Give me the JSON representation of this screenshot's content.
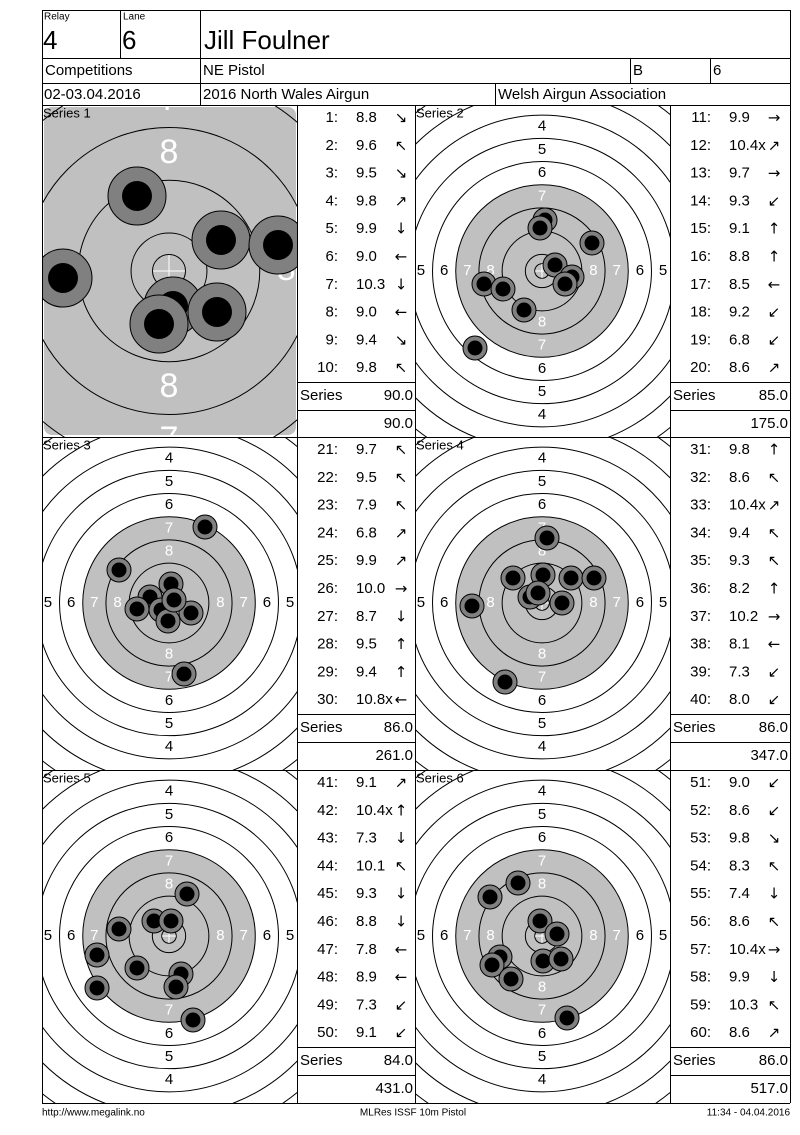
{
  "header": {
    "relay_label": "Relay",
    "relay": "4",
    "lane_label": "Lane",
    "lane": "6",
    "name": "Jill Foulner",
    "competitions_label": "Competitions",
    "discipline": "NE Pistol",
    "class": "B",
    "class_no": "6",
    "date": "02-03.04.2016",
    "event": "2016 North Wales Airgun",
    "organizer": "Welsh Airgun Association"
  },
  "target_rings": [
    "4",
    "5",
    "6",
    "7",
    "8"
  ],
  "series": [
    {
      "title": "Series 1",
      "series_label": "Series",
      "total": "90.0",
      "cumulative": "90.0",
      "shots": [
        {
          "no": "1:",
          "score": "8.8",
          "dir": "↘"
        },
        {
          "no": "2:",
          "score": "9.6",
          "dir": "↖"
        },
        {
          "no": "3:",
          "score": "9.5",
          "dir": "↘"
        },
        {
          "no": "4:",
          "score": "9.8",
          "dir": "↗"
        },
        {
          "no": "5:",
          "score": "9.9",
          "dir": "↓"
        },
        {
          "no": "6:",
          "score": "9.0",
          "dir": "←"
        },
        {
          "no": "7:",
          "score": "10.3",
          "dir": "↓"
        },
        {
          "no": "8:",
          "score": "9.0",
          "dir": "←"
        },
        {
          "no": "9:",
          "score": "9.4",
          "dir": "↘"
        },
        {
          "no": "10:",
          "score": "9.8",
          "dir": "↖"
        }
      ]
    },
    {
      "title": "Series 2",
      "series_label": "Series",
      "total": "85.0",
      "cumulative": "175.0",
      "shots": [
        {
          "no": "11:",
          "score": "9.9",
          "dir": "→"
        },
        {
          "no": "12:",
          "score": "10.4x",
          "dir": "↗"
        },
        {
          "no": "13:",
          "score": "9.7",
          "dir": "→"
        },
        {
          "no": "14:",
          "score": "9.3",
          "dir": "↙"
        },
        {
          "no": "15:",
          "score": "9.1",
          "dir": "↑"
        },
        {
          "no": "16:",
          "score": "8.8",
          "dir": "↑"
        },
        {
          "no": "17:",
          "score": "8.5",
          "dir": "←"
        },
        {
          "no": "18:",
          "score": "9.2",
          "dir": "↙"
        },
        {
          "no": "19:",
          "score": "6.8",
          "dir": "↙"
        },
        {
          "no": "20:",
          "score": "8.6",
          "dir": "↗"
        }
      ]
    },
    {
      "title": "Series 3",
      "series_label": "Series",
      "total": "86.0",
      "cumulative": "261.0",
      "shots": [
        {
          "no": "21:",
          "score": "9.7",
          "dir": "↖"
        },
        {
          "no": "22:",
          "score": "9.5",
          "dir": "↖"
        },
        {
          "no": "23:",
          "score": "7.9",
          "dir": "↖"
        },
        {
          "no": "24:",
          "score": "6.8",
          "dir": "↗"
        },
        {
          "no": "25:",
          "score": "9.9",
          "dir": "↗"
        },
        {
          "no": "26:",
          "score": "10.0",
          "dir": "→"
        },
        {
          "no": "27:",
          "score": "8.7",
          "dir": "↓"
        },
        {
          "no": "28:",
          "score": "9.5",
          "dir": "↑"
        },
        {
          "no": "29:",
          "score": "9.4",
          "dir": "↑"
        },
        {
          "no": "30:",
          "score": "10.8x",
          "dir": "←"
        }
      ]
    },
    {
      "title": "Series 4",
      "series_label": "Series",
      "total": "86.0",
      "cumulative": "347.0",
      "shots": [
        {
          "no": "31:",
          "score": "9.8",
          "dir": "↑"
        },
        {
          "no": "32:",
          "score": "8.6",
          "dir": "↖"
        },
        {
          "no": "33:",
          "score": "10.4x",
          "dir": "↗"
        },
        {
          "no": "34:",
          "score": "9.4",
          "dir": "↖"
        },
        {
          "no": "35:",
          "score": "9.3",
          "dir": "↖"
        },
        {
          "no": "36:",
          "score": "8.2",
          "dir": "↑"
        },
        {
          "no": "37:",
          "score": "10.2",
          "dir": "→"
        },
        {
          "no": "38:",
          "score": "8.1",
          "dir": "←"
        },
        {
          "no": "39:",
          "score": "7.3",
          "dir": "↙"
        },
        {
          "no": "40:",
          "score": "8.0",
          "dir": "↙"
        }
      ]
    },
    {
      "title": "Series 5",
      "series_label": "Series",
      "total": "84.0",
      "cumulative": "431.0",
      "shots": [
        {
          "no": "41:",
          "score": "9.1",
          "dir": "↗"
        },
        {
          "no": "42:",
          "score": "10.4x",
          "dir": "↑"
        },
        {
          "no": "43:",
          "score": "7.3",
          "dir": "↓"
        },
        {
          "no": "44:",
          "score": "10.1",
          "dir": "↖"
        },
        {
          "no": "45:",
          "score": "9.3",
          "dir": "↓"
        },
        {
          "no": "46:",
          "score": "8.8",
          "dir": "↓"
        },
        {
          "no": "47:",
          "score": "7.8",
          "dir": "←"
        },
        {
          "no": "48:",
          "score": "8.9",
          "dir": "←"
        },
        {
          "no": "49:",
          "score": "7.3",
          "dir": "↙"
        },
        {
          "no": "50:",
          "score": "9.1",
          "dir": "↙"
        }
      ]
    },
    {
      "title": "Series 6",
      "series_label": "Series",
      "total": "86.0",
      "cumulative": "517.0",
      "shots": [
        {
          "no": "51:",
          "score": "9.0",
          "dir": "↙"
        },
        {
          "no": "52:",
          "score": "8.6",
          "dir": "↙"
        },
        {
          "no": "53:",
          "score": "9.8",
          "dir": "↘"
        },
        {
          "no": "54:",
          "score": "8.3",
          "dir": "↖"
        },
        {
          "no": "55:",
          "score": "7.4",
          "dir": "↓"
        },
        {
          "no": "56:",
          "score": "8.6",
          "dir": "↖"
        },
        {
          "no": "57:",
          "score": "10.4x",
          "dir": "→"
        },
        {
          "no": "58:",
          "score": "9.9",
          "dir": "↓"
        },
        {
          "no": "59:",
          "score": "10.3",
          "dir": "↖"
        },
        {
          "no": "60:",
          "score": "8.6",
          "dir": "↗"
        }
      ]
    }
  ],
  "footer": {
    "url": "http://www.megalink.no",
    "program": "MLRes ISSF 10m Pistol",
    "timestamp": "11:34 - 04.04.2016"
  }
}
